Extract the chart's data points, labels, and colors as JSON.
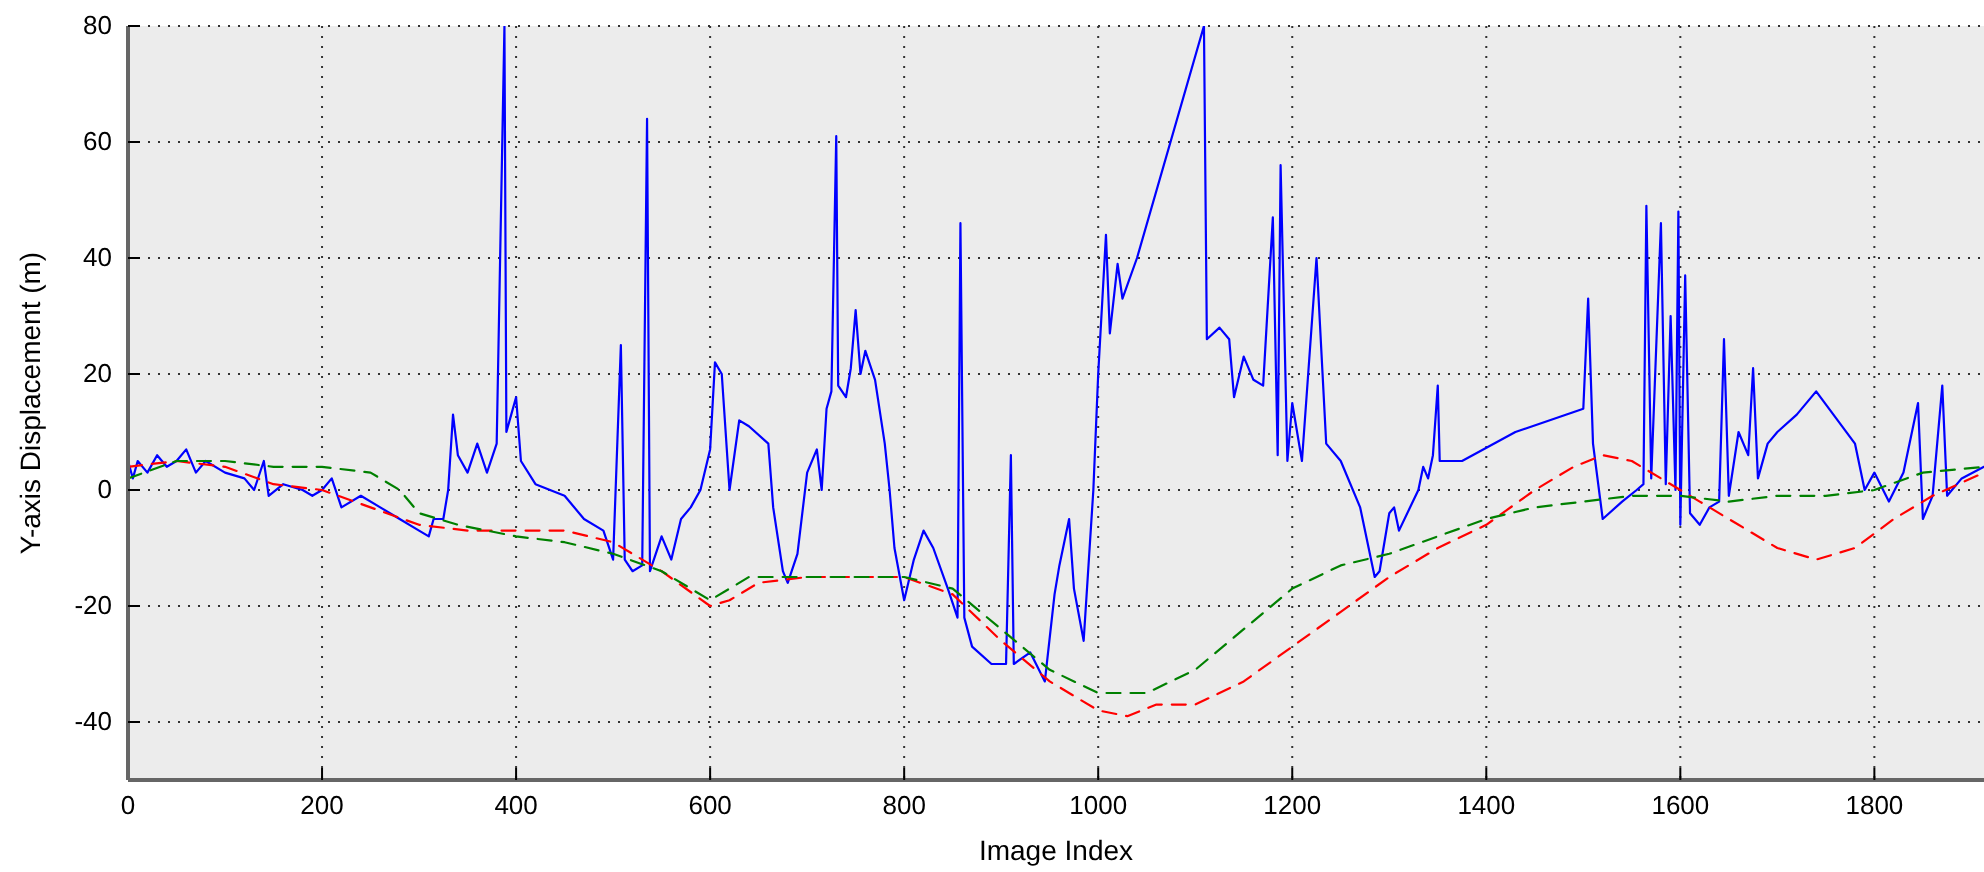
{
  "chart_data": {
    "type": "line",
    "xlabel": "Image Index",
    "ylabel": "Y-axis Displacement (m)",
    "xlim": [
      0,
      1913
    ],
    "ylim": [
      -50,
      80
    ],
    "xticks": [
      0,
      200,
      400,
      600,
      800,
      1000,
      1200,
      1400,
      1600,
      1800
    ],
    "yticks": [
      -40,
      -20,
      0,
      20,
      40,
      60,
      80
    ],
    "grid": true,
    "marker": "none",
    "series": [
      {
        "color": "#0000ff",
        "line_style": "solid",
        "x": [
          0,
          5,
          10,
          20,
          30,
          40,
          50,
          60,
          70,
          80,
          100,
          120,
          130,
          140,
          145,
          160,
          180,
          190,
          200,
          210,
          220,
          240,
          260,
          280,
          300,
          310,
          315,
          325,
          330,
          335,
          340,
          350,
          360,
          370,
          380,
          388,
          390,
          395,
          400,
          405,
          420,
          450,
          470,
          490,
          500,
          508,
          512,
          520,
          530,
          535,
          538,
          550,
          560,
          570,
          580,
          590,
          600,
          605,
          612,
          620,
          630,
          640,
          660,
          665,
          675,
          680,
          690,
          700,
          710,
          715,
          720,
          725,
          730,
          732,
          740,
          745,
          750,
          755,
          760,
          770,
          780,
          785,
          790,
          800,
          810,
          820,
          830,
          845,
          855,
          858,
          862,
          870,
          890,
          905,
          910,
          913,
          930,
          945,
          955,
          960,
          970,
          975,
          985,
          995,
          1000,
          1008,
          1012,
          1020,
          1025,
          1040,
          1109,
          1112,
          1125,
          1135,
          1140,
          1150,
          1160,
          1170,
          1180,
          1185,
          1188,
          1195,
          1200,
          1210,
          1225,
          1235,
          1250,
          1270,
          1285,
          1290,
          1300,
          1305,
          1310,
          1330,
          1335,
          1340,
          1345,
          1350,
          1352,
          1375,
          1430,
          1500,
          1505,
          1510,
          1520,
          1540,
          1555,
          1562,
          1565,
          1570,
          1580,
          1585,
          1590,
          1595,
          1598,
          1600,
          1605,
          1610,
          1620,
          1630,
          1640,
          1645,
          1650,
          1660,
          1670,
          1675,
          1680,
          1690,
          1700,
          1720,
          1740,
          1780,
          1790,
          1800,
          1815,
          1830,
          1845,
          1850,
          1860,
          1870,
          1875,
          1890,
          1913
        ],
        "values": [
          5,
          2,
          5,
          3,
          6,
          4,
          5,
          7,
          3,
          5,
          3,
          2,
          0,
          5,
          -1,
          1,
          0,
          -1,
          0,
          2,
          -3,
          -1,
          -3,
          -5,
          -7,
          -8,
          -5,
          -5,
          0,
          13,
          6,
          3,
          8,
          3,
          8,
          80,
          10,
          13,
          16,
          5,
          1,
          -1,
          -5,
          -7,
          -12,
          25,
          -12,
          -14,
          -13,
          64,
          -14,
          -8,
          -12,
          -5,
          -3,
          0,
          7,
          22,
          20,
          0,
          12,
          11,
          8,
          -3,
          -14,
          -16,
          -11,
          3,
          7,
          0,
          14,
          17,
          61,
          18,
          16,
          21,
          31,
          20,
          24,
          19,
          8,
          0,
          -10,
          -19,
          -12,
          -7,
          -10,
          -17,
          -22,
          46,
          -22,
          -27,
          -30,
          -30,
          6,
          -30,
          -28,
          -33,
          -18,
          -13,
          -5,
          -17,
          -26,
          0,
          20,
          44,
          27,
          39,
          33,
          40,
          80,
          26,
          28,
          26,
          16,
          23,
          19,
          18,
          47,
          6,
          56,
          5,
          15,
          5,
          40,
          8,
          5,
          -3,
          -15,
          -14,
          -4,
          -3,
          -7,
          0,
          4,
          2,
          6,
          18,
          5,
          5,
          10,
          14,
          33,
          8,
          -5,
          -2,
          0,
          1,
          49,
          2,
          46,
          1,
          30,
          0,
          48,
          -6,
          37,
          -4,
          -6,
          -3,
          -2,
          26,
          -1,
          10,
          6,
          21,
          2,
          8,
          10,
          13,
          17,
          8,
          0,
          3,
          -2,
          3,
          15,
          -5,
          -1,
          18,
          -1,
          2,
          4
        ]
      },
      {
        "color": "#ff0000",
        "line_style": "dashed",
        "x": [
          0,
          50,
          100,
          150,
          200,
          250,
          300,
          350,
          400,
          450,
          500,
          550,
          600,
          620,
          650,
          700,
          750,
          800,
          850,
          900,
          950,
          1000,
          1030,
          1060,
          1100,
          1150,
          1200,
          1250,
          1300,
          1350,
          1400,
          1450,
          1490,
          1520,
          1550,
          1580,
          1620,
          1660,
          1700,
          1740,
          1780,
          1820,
          1860,
          1913
        ],
        "values": [
          4,
          5,
          4,
          1,
          0,
          -3,
          -6,
          -7,
          -7,
          -7,
          -9,
          -14,
          -20,
          -19,
          -16,
          -15,
          -15,
          -15,
          -18,
          -26,
          -33,
          -38,
          -39,
          -37,
          -37,
          -33,
          -27,
          -21,
          -15,
          -10,
          -6,
          0,
          4,
          6,
          5,
          2,
          -2,
          -6,
          -10,
          -12,
          -10,
          -5,
          -1,
          3
        ]
      },
      {
        "color": "#008000",
        "line_style": "dashed",
        "x": [
          0,
          50,
          100,
          150,
          200,
          250,
          280,
          300,
          340,
          400,
          450,
          500,
          550,
          600,
          640,
          680,
          750,
          800,
          850,
          900,
          950,
          1000,
          1050,
          1100,
          1150,
          1200,
          1250,
          1300,
          1350,
          1400,
          1450,
          1500,
          1550,
          1600,
          1650,
          1700,
          1750,
          1800,
          1850,
          1913
        ],
        "values": [
          2,
          5,
          5,
          4,
          4,
          3,
          0,
          -4,
          -6,
          -8,
          -9,
          -11,
          -14,
          -19,
          -15,
          -15,
          -15,
          -15,
          -17,
          -24,
          -31,
          -35,
          -35,
          -31,
          -24,
          -17,
          -13,
          -11,
          -8,
          -5,
          -3,
          -2,
          -1,
          -1,
          -2,
          -1,
          -1,
          0,
          3,
          4
        ]
      }
    ]
  }
}
